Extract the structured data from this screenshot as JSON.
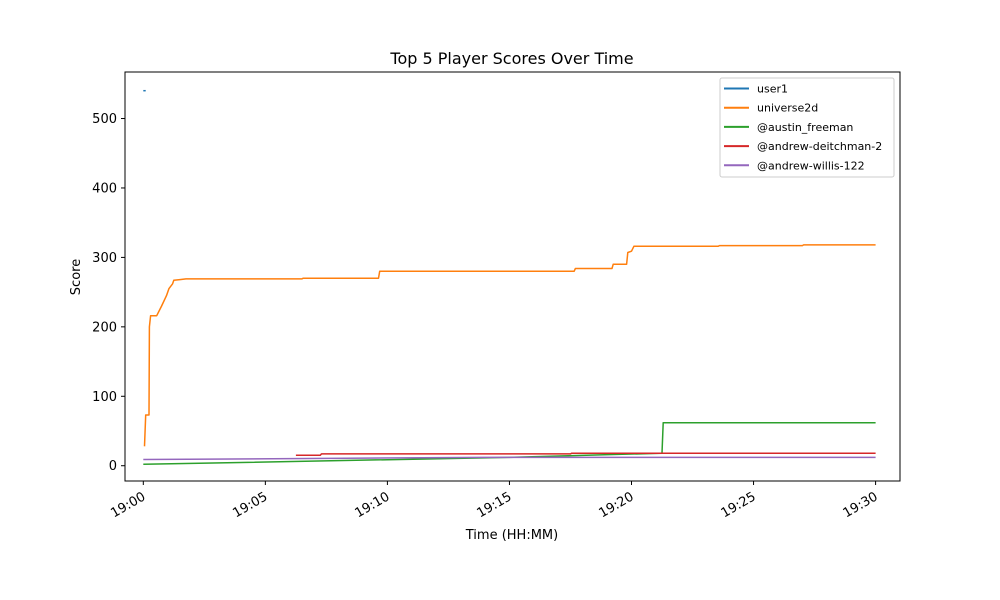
{
  "chart_data": {
    "type": "line",
    "title": "Top 5 Player Scores Over Time",
    "xlabel": "Time (HH:MM)",
    "ylabel": "Score",
    "x_format": "HH:MM",
    "xlim": [
      "18:59:15",
      "19:31:00"
    ],
    "ylim": [
      -22,
      567
    ],
    "x_ticks": [
      "19:00",
      "19:05",
      "19:10",
      "19:15",
      "19:20",
      "19:25",
      "19:30"
    ],
    "y_ticks": [
      0,
      100,
      200,
      300,
      400,
      500
    ],
    "grid": false,
    "legend_position": "top-right",
    "series": [
      {
        "name": "user1",
        "color": "#1f77b4",
        "points": [
          [
            "19:00:00",
            540
          ],
          [
            "19:00:06",
            540
          ]
        ]
      },
      {
        "name": "universe2d",
        "color": "#ff7f0e",
        "points": [
          [
            "19:00:03",
            28
          ],
          [
            "19:00:06",
            73
          ],
          [
            "19:00:14",
            73
          ],
          [
            "19:00:15",
            200
          ],
          [
            "19:00:18",
            216
          ],
          [
            "19:00:33",
            216
          ],
          [
            "19:00:45",
            230
          ],
          [
            "19:00:57",
            245
          ],
          [
            "19:01:03",
            255
          ],
          [
            "19:01:12",
            262
          ],
          [
            "19:01:15",
            267
          ],
          [
            "19:01:30",
            268
          ],
          [
            "19:01:45",
            269
          ],
          [
            "19:06:30",
            269
          ],
          [
            "19:06:33",
            270
          ],
          [
            "19:09:38",
            270
          ],
          [
            "19:09:41",
            280
          ],
          [
            "19:17:39",
            280
          ],
          [
            "19:17:42",
            284
          ],
          [
            "19:19:12",
            284
          ],
          [
            "19:19:15",
            290
          ],
          [
            "19:19:48",
            290
          ],
          [
            "19:19:51",
            307
          ],
          [
            "19:20:00",
            309
          ],
          [
            "19:20:06",
            316
          ],
          [
            "19:23:33",
            316
          ],
          [
            "19:23:36",
            317
          ],
          [
            "19:27:00",
            317
          ],
          [
            "19:27:03",
            318
          ],
          [
            "19:30:00",
            318
          ]
        ]
      },
      {
        "name": "@austin_freeman",
        "color": "#2ca02c",
        "points": [
          [
            "19:00:00",
            2
          ],
          [
            "19:15:00",
            12
          ],
          [
            "19:21:15",
            18
          ],
          [
            "19:21:18",
            62
          ],
          [
            "19:30:00",
            62
          ]
        ]
      },
      {
        "name": "@andrew-deitchman-2",
        "color": "#d62728",
        "points": [
          [
            "19:06:15",
            15
          ],
          [
            "19:07:15",
            15
          ],
          [
            "19:07:18",
            17
          ],
          [
            "19:17:30",
            17
          ],
          [
            "19:17:33",
            18
          ],
          [
            "19:30:00",
            18
          ]
        ]
      },
      {
        "name": "@andrew-willis-122",
        "color": "#9467bd",
        "points": [
          [
            "19:00:00",
            9
          ],
          [
            "19:14:00",
            12
          ],
          [
            "19:30:00",
            12
          ]
        ]
      }
    ]
  }
}
